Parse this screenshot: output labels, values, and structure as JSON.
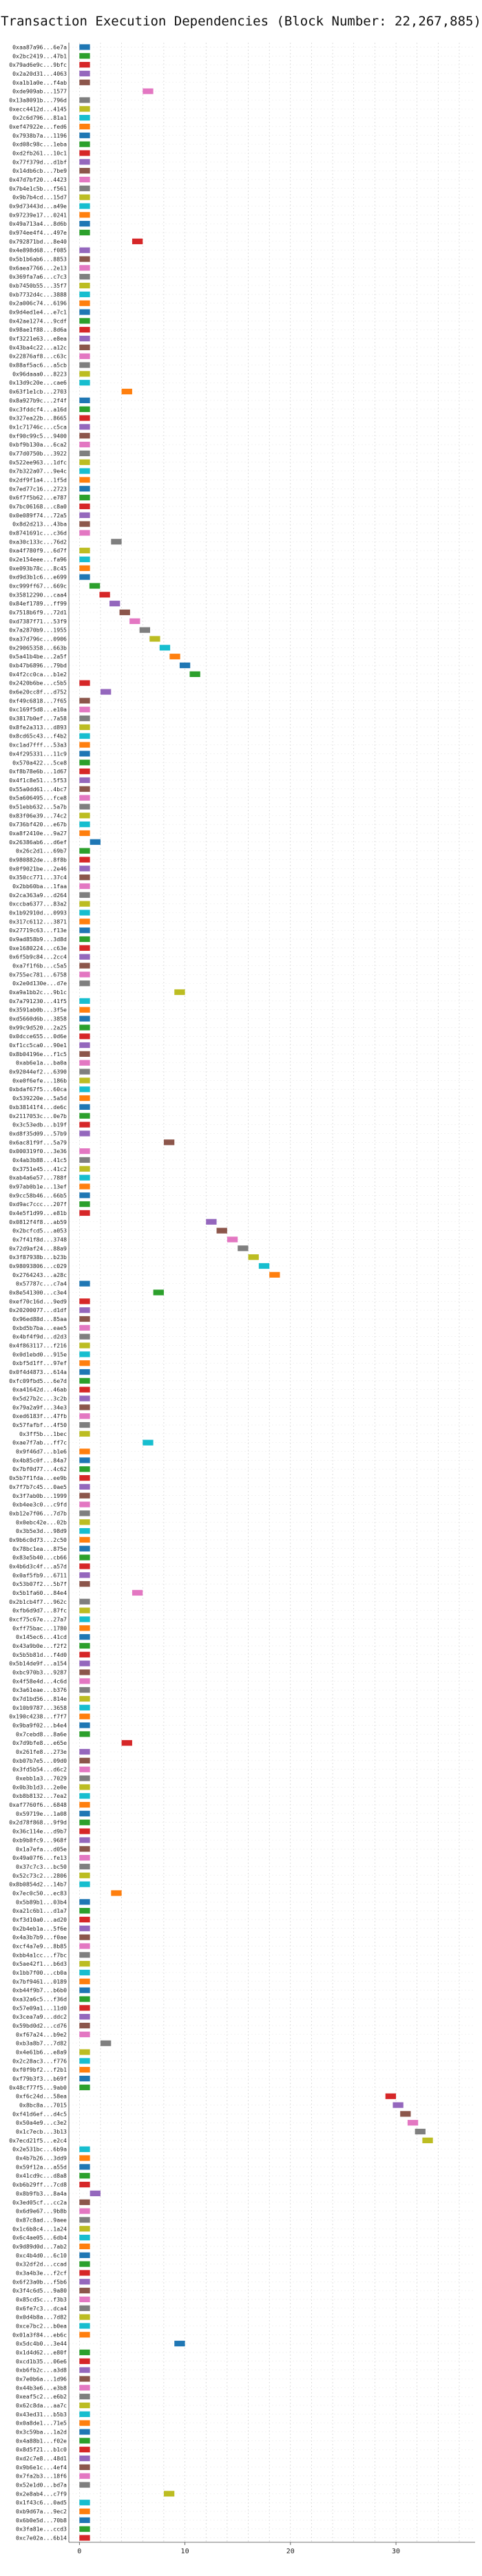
{
  "chart_data": {
    "type": "bar",
    "orientation": "horizontal-gantt",
    "title": "Transaction Execution Dependencies (Block Number: 22,267,885)",
    "xlabel": "",
    "ylabel": "",
    "xlim": [
      -1,
      37.5
    ],
    "xticks": [
      0,
      10,
      20,
      30
    ],
    "grid": true,
    "legend": "none",
    "colors": [
      "#1f77b4",
      "#2ca02c",
      "#d62728",
      "#9467bd",
      "#8c564b",
      "#e377c2",
      "#7f7f7f",
      "#bcbd22",
      "#17becf",
      "#ff7f0e"
    ],
    "categories": [
      "0xaa87a96...6e7a",
      "0x2bc2419...47b1",
      "0x79ad6e9c...9bfc",
      "0x2a20d31...4063",
      "0xa1b1a0e...f4ab",
      "0xde909ab...1577",
      "0x13a8091b...796d",
      "0xecc4412d...4145",
      "0x2c6d796...81a1",
      "0xef47922e...fed6",
      "0x7938b7a...1196",
      "0xd08c98c...1eba",
      "0xd2fb261...10c1",
      "0x77f379d...d1bf",
      "0x14db6cb...7be9",
      "0x47d7bf20...4423",
      "0x7b4e1c5b...f561",
      "0x9b7b4cd...15d7",
      "0x9d73443d...a49e",
      "0x97239e17...0241",
      "0x49a713a4...8d6b",
      "0x974ee4f4...497e",
      "0x792871bd...8e40",
      "0x4e898d68...f085",
      "0x5b1b6ab6...8853",
      "0x6aea7766...2e13",
      "0x369fa7a6...c7c3",
      "0xb7450b55...35f7",
      "0xb7732d4c...3888",
      "0x2a006c74...6196",
      "0x9d4ed1e4...e7c1",
      "0x42ae1274...9cdf",
      "0x98ae1f88...8d6a",
      "0xf3221e63...e8ea",
      "0x43ba4c22...a12c",
      "0x22876af8...c63c",
      "0x88af5ac6...a5cb",
      "0x96daaa0...8223",
      "0x13d9c20e...cae6",
      "0x63f1e1cb...2703",
      "0x8a927b9c...2f4f",
      "0xc3fddcf4...a16d",
      "0x327ea22b...8665",
      "0x1c71746c...c5ca",
      "0xf90c99c5...9400",
      "0xbf9b130a...6ca2",
      "0x77d0750b...3922",
      "0x522ee963...1dfc",
      "0x7b322a07...9e4c",
      "0x2df9f1a4...1f5d",
      "0x7ed77c16...2723",
      "0x6f7f5b62...e787",
      "0x7bc06168...c8a0",
      "0x0e089f74...72a5",
      "0x8d2d213...43ba",
      "0x8741691c...c36d",
      "0xa30c133c...76d2",
      "0xa4f780f9...6d7f",
      "0x2e154eee...fa96",
      "0xe093b78c...8c45",
      "0xd9d3b1c6...e699",
      "0xc999ff67...669c",
      "0x35812290...caa4",
      "0x84ef1789...ff99",
      "0x7518b6f9...72d1",
      "0xd7387f71...53f9",
      "0x7a2870b9...1955",
      "0xa37d796c...0906",
      "0x29065358...663b",
      "0x5a41b4be...2a5f",
      "0xb47b6896...79bd",
      "0x4f2cc0ca...b1e2",
      "0x2420b6be...c5b5",
      "0x6e20cc8f...d752",
      "0xf49c6818...7f65",
      "0xc169f5d8...e10a",
      "0x3817b0ef...7a58",
      "0x8fe2a313...d893",
      "0x8cd65c43...f4b2",
      "0xc1ad7fff...53a3",
      "0x4f295331...11c9",
      "0x570a422...5ce8",
      "0xf8b78e6b...1d67",
      "0x4f1c8e51...5f53",
      "0x55a0dd61...4bc7",
      "0x5a606495...fce8",
      "0x51ebb632...5a7b",
      "0x83f06e39...74c2",
      "0x736bf420...e67b",
      "0xa8f2410e...9a27",
      "0x26386ab6...d6ef",
      "0x26c2d1...69b7",
      "0x980882de...8f8b",
      "0x0f9021be...2e46",
      "0x350cc771...37c4",
      "0x2bb60ba...1faa",
      "0x2ca363a9...d264",
      "0xccba6377...83a2",
      "0x1b92910d...0993",
      "0x317c6112...3871",
      "0x27719c63...f13e",
      "0x9ad858b9...3d8d",
      "0xe1680224...c63e",
      "0x6f5b9c84...2cc4",
      "0xa7f1f6b...c5a5",
      "0x755ec781...6758",
      "0x2e0d130e...d7e",
      "0xa9a1bb2c...9b1c",
      "0x7a791230...41f5",
      "0x3591ab0b...3f5e",
      "0xd5660d6b...3858",
      "0x99c9d520...2a25",
      "0x0dcce655...0d6e",
      "0xf1cc5ca0...90e1",
      "0x8b04196e...f1c5",
      "0xab6e1a...ba0a",
      "0x92044ef2...6390",
      "0xe0f6efe...186b",
      "0xbdaf67f5...60ca",
      "0x539220e...5a5d",
      "0xb38141f4...de6c",
      "0x2117053c...0e7b",
      "0x3c53edb...b19f",
      "0xd8f35d09...57b9",
      "0x6ac81f9f...5a79",
      "0x000319f0...3e36",
      "0x4ab3b88...41c5",
      "0x3751e45...41c2",
      "0xab4a6e57...788f",
      "0x97ab0b1e...13ef",
      "0x9cc58b46...66b5",
      "0xd9ac7ccc...207f",
      "0x4e5f1d99...e81b",
      "0x0812f4f8...ab59",
      "0x2bcfcd5...a053",
      "0x7f41f8d...3748",
      "0x72d9af24...88a9",
      "0x3f87938b...b23b",
      "0x98093806...c029",
      "0x2764243...a28c",
      "0x57787c...c7a4",
      "0x8e541300...c3e4",
      "0xef70c16d...9ed9",
      "0x20200077...d1df",
      "0x96ed88d...85aa",
      "0xbd5b7ba...eae5",
      "0x4bf4f9d...d2d3",
      "0x4f863117...f216",
      "0x0d1ebd0...915e",
      "0xbf5d1ff...97ef",
      "0x0f4d4873...614a",
      "0xfc09fbd5...6e7d",
      "0xa41642d...46ab",
      "0x5d27b2c...3c2b",
      "0x79a2a9f...34e3",
      "0xed6183f...47fb",
      "0x57fafbf...4f50",
      "0x3ff5b...1bec",
      "0xae7f7ab...ff7c",
      "0x9f46d7...b1e6",
      "0x4b85c0f...84a7",
      "0x7bf0d77...4c62",
      "0x5b7f1fda...ee9b",
      "0x7f7b7c45...0ae5",
      "0x3f7ab0b...1999",
      "0xb4ee3c0...c9fd",
      "0xb12e7f06...7d7b",
      "0x0ebc42e...02b",
      "0x3b5e3d...98d9",
      "0x9b6c0d73...2c50",
      "0x78bc1ea...875e",
      "0x83e5b40...cb66",
      "0x4b6d3c4f...a57d",
      "0x0af5fb9...6711",
      "0x53b07f2...5b7f",
      "0x5b1fa60...84e4",
      "0x2b1cb4f7...962c",
      "0xfb6d9d7...87fc",
      "0xcf75c67e...27a7",
      "0xff75bac...1780",
      "0x145ec6...41cd",
      "0x43a9b0e...f2f2",
      "0x5b5b81d...f4d0",
      "0x5b14de9f...a154",
      "0xbc970b3...9287",
      "0x4f58e4d...4c6d",
      "0x3a61eae...b376",
      "0x7d1bd56...814e",
      "0x10b9787...3658",
      "0x190c4238...f7f7",
      "0x9ba9f02...b4e4",
      "0x7cebd8...8a6e",
      "0x7d9bfe8...e65e",
      "0x261fe8...273e",
      "0xb07b7e5...09d0",
      "0x3fd5b54...d6c2",
      "0xebb1a3...7029",
      "0x0b3b1d3...2e0e",
      "0xb8b8132...7ea2",
      "0xaf7760f6...6848",
      "0x59719e...1a08",
      "0x2d78f868...9f9d",
      "0x36c114e...d9b7",
      "0xb9b8fc9...968f",
      "0x1a7efa...d05e",
      "0x49a07f6...fe13",
      "0x37c7c3...bc50",
      "0x52c73c2...2806",
      "0x8b0854d2...14b7",
      "0x7ec0c50...ec83",
      "0x5b89b1...03b4",
      "0xa21c6b1...d1a7",
      "0xf3d10a0...ad20",
      "0x2b4eb1a...5f6e",
      "0x4a3b7b9...f0ae",
      "0xcf4a7e9...8b85",
      "0xbb4a1cc...f7bc",
      "0x5ae42f1...b6d3",
      "0x1bb7f00...cb0a",
      "0x7bf9461...0189",
      "0xb44f9b7...b6b0",
      "0xa32a6c5...f36d",
      "0x57e09a1...11d0",
      "0x3cea7a9...ddc2",
      "0x59bd0d2...cd76",
      "0xf67a24...b9e2",
      "0xb3a8b7...7d82",
      "0x4e61b6...e8a9",
      "0x2c28ac3...f776",
      "0xf0f9bf2...f2b1",
      "0xf79b3f3...b69f",
      "0x48cf77f5...9ab0",
      "0xf6c24d...58ea",
      "0x8bc8a...7015",
      "0xf41d6ef...d4c5",
      "0x50a4e9...c3e2",
      "0x1c7ecb...3b13",
      "0x7ecd21f5...e2c4",
      "0x2e531bc...6b9a",
      "0x4b7b26...3dd9",
      "0x59f12a...a55d",
      "0x41cd9c...d8a8",
      "0xb6b29ff...7cd8",
      "0x8b9fb3...8a4a",
      "0x3ed05cf...cc2a",
      "0x6d9e67...9b8b",
      "0x87c8ad...9aee",
      "0x1c6b8c4...1a24",
      "0x6c4ae05...6db4",
      "0x9d89d0d...7ab2",
      "0xc4b4d0...6c10",
      "0x32df2d...ccad",
      "0x3a4b3e...f2cf",
      "0x6f23a0b...f5b6",
      "0x3f4c6d5...9a80",
      "0x85cd5c...f3b3",
      "0x6fe7c3...dca4",
      "0x0d4b8a...7d82",
      "0xce7bc2...b0ea",
      "0x01a3f84...eb6c",
      "0x5dc4b0...3e44",
      "0x1d4d62...e80f",
      "0xcd1b35...06e6",
      "0xb6fb2c...a3d8",
      "0x7e0b6a...1d96",
      "0x44b3e6...e3b8",
      "0xeaf5c2...e6b2",
      "0x62c8da...aa7c",
      "0x43ed31...b5b3",
      "0x0a8de1...71e5",
      "0x3c59ba...1a2d",
      "0x4a88b1...f02e",
      "0x8d5f21...b1c0",
      "0xd2c7e8...48d1",
      "0x9b6e1c...4ef4",
      "0x7fa2b3...18f6",
      "0x52e1d0...bd7a",
      "0x2e8ab4...c7f9",
      "0x1f43c6...0ad5",
      "0xb9d67a...9ec2",
      "0x6b0e5d...70b8",
      "0x3fa81e...ccd3",
      "0xc7e02a...6b14"
    ],
    "values_note": "Each category is one transaction; its bar starts at `start` and ends at `start + duration` on the x-axis.",
    "series": [
      {
        "start": 0,
        "duration": 1,
        "color_index": 0
      }
    ]
  }
}
